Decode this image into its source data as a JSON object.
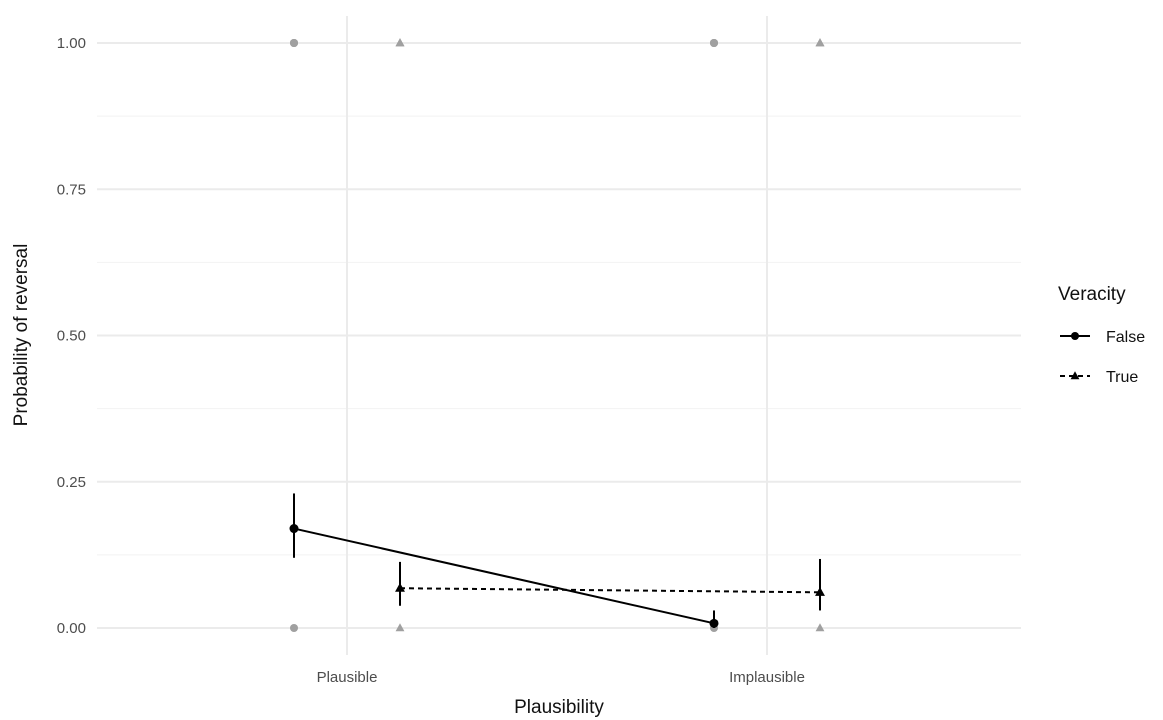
{
  "chart_data": {
    "type": "line",
    "xlabel": "Plausibility",
    "ylabel": "Probability of reversal",
    "categories": [
      "Plausible",
      "Implausible"
    ],
    "ylim": [
      -0.04,
      1.04
    ],
    "yticks": [
      0.0,
      0.25,
      0.5,
      0.75,
      1.0
    ],
    "ytick_labels": [
      "0.00",
      "0.25",
      "0.50",
      "0.75",
      "1.00"
    ],
    "grid": true,
    "legend": {
      "title": "Veracity",
      "position": "right"
    },
    "series": [
      {
        "name": "False",
        "marker": "circle",
        "linestyle": "solid",
        "color": "#000000",
        "values": [
          0.17,
          0.008
        ],
        "ci_low": [
          0.12,
          0.0
        ],
        "ci_high": [
          0.23,
          0.03
        ],
        "raw_points": [
          [
            0,
            1
          ],
          [
            1,
            1
          ]
        ]
      },
      {
        "name": "True",
        "marker": "triangle",
        "linestyle": "dashed",
        "color": "#000000",
        "values": [
          0.068,
          0.061
        ],
        "ci_low": [
          0.038,
          0.03
        ],
        "ci_high": [
          0.113,
          0.118
        ],
        "raw_points": [
          [
            0,
            1
          ],
          [
            1,
            1
          ]
        ]
      }
    ],
    "raw_point_color": "#a0a0a0"
  }
}
